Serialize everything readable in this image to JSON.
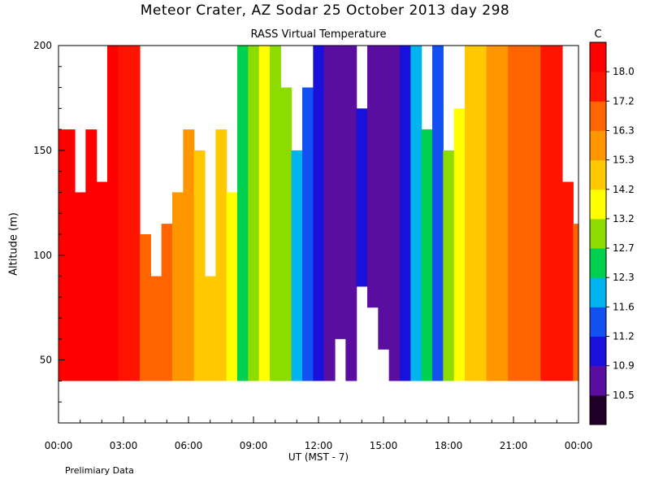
{
  "chart_data": {
    "type": "heatmap",
    "title": "Meteor Crater, AZ  Sodar  25 October 2013  day 298",
    "subtitle": "RASS Virtual Temperature",
    "xlabel": "UT  (MST - 7)",
    "ylabel": "Altitude (m)",
    "colorbar_unit": "C",
    "note": "Prelimiary Data",
    "x_ticks": [
      "00:00",
      "03:00",
      "06:00",
      "09:00",
      "12:00",
      "15:00",
      "18:00",
      "21:00",
      "00:00"
    ],
    "y_ticks": [
      50,
      100,
      150,
      200
    ],
    "xlim": [
      0,
      24
    ],
    "ylim": [
      20,
      200
    ],
    "colorbar": {
      "levels": [
        10.5,
        10.9,
        11.2,
        11.6,
        12.3,
        12.7,
        13.2,
        14.2,
        15.3,
        16.3,
        17.2,
        18.0
      ],
      "colors": [
        "#200028",
        "#5a0ea0",
        "#1a10dc",
        "#1250f0",
        "#00b4f0",
        "#00d050",
        "#8cdc00",
        "#ffff00",
        "#ffc800",
        "#ff9600",
        "#ff6400",
        "#ff1400",
        "#ff0000"
      ]
    },
    "columns": [
      {
        "t": 0.0,
        "top": 160,
        "bottom": 40,
        "value": 18.5
      },
      {
        "t": 0.5,
        "top": 160,
        "bottom": 40,
        "value": 18.5
      },
      {
        "t": 1.0,
        "top": 130,
        "bottom": 40,
        "value": 18.5
      },
      {
        "t": 1.5,
        "top": 160,
        "bottom": 40,
        "value": 18.5
      },
      {
        "t": 2.0,
        "top": 135,
        "bottom": 40,
        "value": 18.2
      },
      {
        "t": 2.5,
        "top": 200,
        "bottom": 40,
        "value": 18.0
      },
      {
        "t": 3.0,
        "top": 200,
        "bottom": 40,
        "value": 17.8
      },
      {
        "t": 3.5,
        "top": 200,
        "bottom": 40,
        "value": 17.5
      },
      {
        "t": 4.0,
        "top": 110,
        "bottom": 40,
        "value": 16.8
      },
      {
        "t": 4.5,
        "top": 90,
        "bottom": 40,
        "value": 16.5
      },
      {
        "t": 5.0,
        "top": 115,
        "bottom": 40,
        "value": 16.3
      },
      {
        "t": 5.5,
        "top": 130,
        "bottom": 40,
        "value": 16.0
      },
      {
        "t": 6.0,
        "top": 160,
        "bottom": 40,
        "value": 15.5
      },
      {
        "t": 6.5,
        "top": 150,
        "bottom": 40,
        "value": 15.0
      },
      {
        "t": 7.0,
        "top": 90,
        "bottom": 40,
        "value": 14.5
      },
      {
        "t": 7.5,
        "top": 160,
        "bottom": 40,
        "value": 14.2
      },
      {
        "t": 8.0,
        "top": 130,
        "bottom": 40,
        "value": 13.2
      },
      {
        "t": 8.5,
        "top": 200,
        "bottom": 40,
        "value": 12.5
      },
      {
        "t": 9.0,
        "top": 200,
        "bottom": 40,
        "value": 12.7
      },
      {
        "t": 9.5,
        "top": 200,
        "bottom": 40,
        "value": 13.2
      },
      {
        "t": 10.0,
        "top": 200,
        "bottom": 40,
        "value": 13.0
      },
      {
        "t": 10.5,
        "top": 180,
        "bottom": 40,
        "value": 12.7
      },
      {
        "t": 11.0,
        "top": 150,
        "bottom": 40,
        "value": 11.6
      },
      {
        "t": 11.5,
        "top": 180,
        "bottom": 40,
        "value": 11.4
      },
      {
        "t": 12.0,
        "top": 200,
        "bottom": 40,
        "value": 11.0
      },
      {
        "t": 12.5,
        "top": 200,
        "bottom": 40,
        "value": 10.8
      },
      {
        "t": 13.0,
        "top": 200,
        "bottom": 60,
        "value": 10.6
      },
      {
        "t": 13.5,
        "top": 200,
        "bottom": 40,
        "value": 10.5
      },
      {
        "t": 14.0,
        "top": 170,
        "bottom": 85,
        "value": 10.9
      },
      {
        "t": 14.5,
        "top": 200,
        "bottom": 75,
        "value": 10.6
      },
      {
        "t": 15.0,
        "top": 200,
        "bottom": 55,
        "value": 10.6
      },
      {
        "t": 15.5,
        "top": 200,
        "bottom": 40,
        "value": 10.5
      },
      {
        "t": 16.0,
        "top": 200,
        "bottom": 40,
        "value": 10.9
      },
      {
        "t": 16.5,
        "top": 200,
        "bottom": 40,
        "value": 11.6
      },
      {
        "t": 17.0,
        "top": 160,
        "bottom": 40,
        "value": 12.3
      },
      {
        "t": 17.5,
        "top": 200,
        "bottom": 40,
        "value": 11.4
      },
      {
        "t": 18.0,
        "top": 150,
        "bottom": 40,
        "value": 12.9
      },
      {
        "t": 18.5,
        "top": 170,
        "bottom": 40,
        "value": 13.4
      },
      {
        "t": 19.0,
        "top": 200,
        "bottom": 40,
        "value": 14.2
      },
      {
        "t": 19.5,
        "top": 200,
        "bottom": 40,
        "value": 14.8
      },
      {
        "t": 20.0,
        "top": 200,
        "bottom": 40,
        "value": 15.3
      },
      {
        "t": 20.5,
        "top": 200,
        "bottom": 40,
        "value": 15.8
      },
      {
        "t": 21.0,
        "top": 200,
        "bottom": 40,
        "value": 16.3
      },
      {
        "t": 21.5,
        "top": 200,
        "bottom": 40,
        "value": 16.6
      },
      {
        "t": 22.0,
        "top": 200,
        "bottom": 40,
        "value": 16.9
      },
      {
        "t": 22.5,
        "top": 200,
        "bottom": 40,
        "value": 17.2
      },
      {
        "t": 23.0,
        "top": 200,
        "bottom": 40,
        "value": 17.5
      },
      {
        "t": 23.5,
        "top": 135,
        "bottom": 40,
        "value": 17.4
      },
      {
        "t": 24.0,
        "top": 115,
        "bottom": 40,
        "value": 17.0
      }
    ]
  }
}
